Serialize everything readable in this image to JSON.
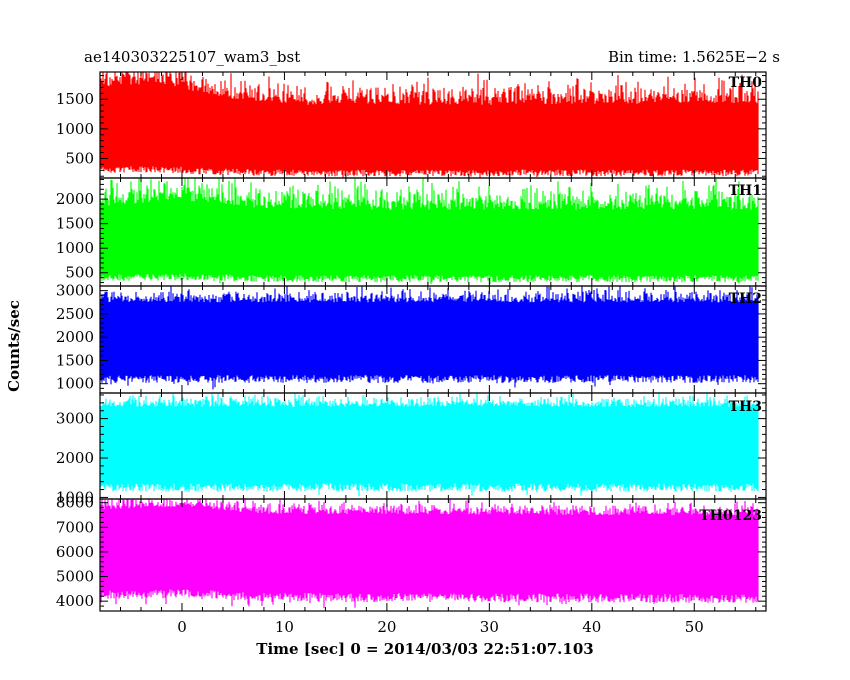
{
  "header": {
    "left_title": "ae140303225107_wam3_bst",
    "right_title": "Bin time: 1.5625E−2 s"
  },
  "chart_data": {
    "type": "line",
    "title": "ae140303225107_wam3_bst",
    "subtitle": "Bin time: 1.5625E−2 s",
    "xlabel": "Time [sec] 0 = 2014/03/03 22:51:07.103",
    "ylabel": "Counts/sec",
    "xlim": [
      -8,
      57
    ],
    "x_ticks": [
      0,
      10,
      20,
      30,
      40,
      50
    ],
    "x_minor_step": 2,
    "data_x_range": [
      -7.9,
      56.2
    ],
    "bin_time": 0.015625,
    "grid": false,
    "panels": [
      {
        "name": "TH0",
        "color": "#ff0000",
        "ylim": [
          170,
          1960
        ],
        "y_ticks": [
          500,
          1000,
          1500
        ],
        "y_minor_step": 100,
        "mean": 780,
        "noise_low": 260,
        "noise_high": 1450,
        "peak": 1960,
        "trend": [
          [
            -8,
            1.18
          ],
          [
            -2,
            1.22
          ],
          [
            4,
            1.05
          ],
          [
            12,
            0.97
          ],
          [
            20,
            0.97
          ],
          [
            30,
            0.97
          ],
          [
            40,
            0.98
          ],
          [
            50,
            0.98
          ],
          [
            56,
            0.98
          ]
        ]
      },
      {
        "name": "TH1",
        "color": "#00ff00",
        "ylim": [
          230,
          2430
        ],
        "y_ticks": [
          500,
          1000,
          1500,
          2000
        ],
        "y_minor_step": 100,
        "mean": 1030,
        "noise_low": 380,
        "noise_high": 1800,
        "peak": 2430,
        "trend": [
          [
            -8,
            1.03
          ],
          [
            0,
            1.1
          ],
          [
            8,
            1.0
          ],
          [
            20,
            0.99
          ],
          [
            40,
            0.99
          ],
          [
            56,
            0.99
          ]
        ]
      },
      {
        "name": "TH2",
        "color": "#0000ff",
        "ylim": [
          800,
          3100
        ],
        "y_ticks": [
          1000,
          1500,
          2000,
          2500,
          3000
        ],
        "y_minor_step": 100,
        "mean": 1850,
        "noise_low": 1100,
        "noise_high": 2750,
        "peak": 3100,
        "trend": [
          [
            -8,
            1.0
          ],
          [
            56,
            1.0
          ]
        ]
      },
      {
        "name": "TH3",
        "color": "#00ffff",
        "ylim": [
          960,
          3650
        ],
        "y_ticks": [
          1000,
          2000,
          3000
        ],
        "y_minor_step": 200,
        "mean": 2200,
        "noise_low": 1250,
        "noise_high": 3300,
        "peak": 3650,
        "trend": [
          [
            -8,
            1.0
          ],
          [
            56,
            1.0
          ]
        ]
      },
      {
        "name": "TH0123",
        "color": "#ff00ff",
        "ylim": [
          3600,
          8150
        ],
        "y_ticks": [
          4000,
          5000,
          6000,
          7000,
          8000
        ],
        "y_minor_step": 200,
        "mean": 5800,
        "noise_low": 4150,
        "noise_high": 7550,
        "peak": 8150,
        "trend": [
          [
            -8,
            1.02
          ],
          [
            0,
            1.04
          ],
          [
            8,
            1.0
          ],
          [
            56,
            0.99
          ]
        ]
      }
    ]
  }
}
